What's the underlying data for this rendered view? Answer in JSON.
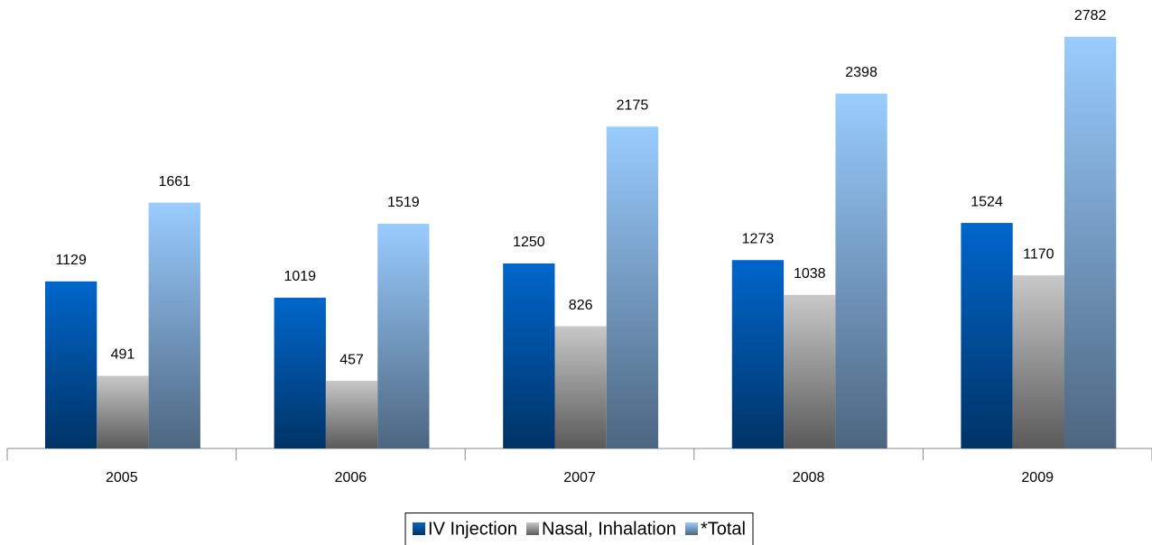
{
  "chart_data": {
    "type": "bar",
    "categories": [
      "2005",
      "2006",
      "2007",
      "2008",
      "2009"
    ],
    "series": [
      {
        "name": "IV Injection",
        "color": "#0066cc",
        "values": [
          1129,
          1019,
          1250,
          1273,
          1524
        ]
      },
      {
        "name": "Nasal, Inhalation",
        "color": "#c8c8c8",
        "values": [
          491,
          457,
          826,
          1038,
          1170
        ]
      },
      {
        "name": "*Total",
        "color": "#99ccff",
        "values": [
          1661,
          1519,
          2175,
          2398,
          2782
        ]
      }
    ],
    "ylim": [
      0,
      3000
    ],
    "legend": "bottom"
  }
}
